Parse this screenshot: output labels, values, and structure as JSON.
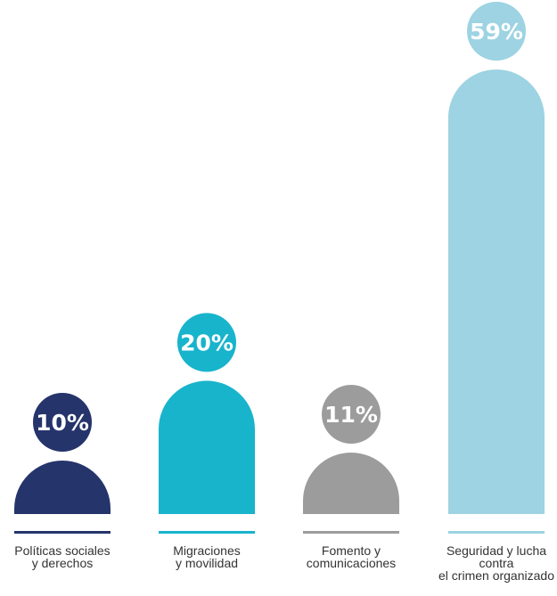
{
  "chart_data": {
    "type": "bar",
    "title": "",
    "xlabel": "",
    "ylabel": "",
    "ylim": [
      0,
      59
    ],
    "grid": false,
    "legend": "none",
    "categories": [
      [
        "Políticas sociales",
        "y derechos"
      ],
      [
        "Migraciones",
        "y movilidad"
      ],
      [
        "Fomento y",
        "comunicaciones"
      ],
      [
        "Seguridad y lucha",
        "contra",
        "el crimen organizado"
      ]
    ],
    "values": [
      10,
      20,
      11,
      59
    ],
    "value_labels": [
      "10%",
      "20%",
      "11%",
      "59%"
    ],
    "colors": [
      "#25346b",
      "#18b4cc",
      "#9c9c9c",
      "#9dd3e2"
    ]
  }
}
